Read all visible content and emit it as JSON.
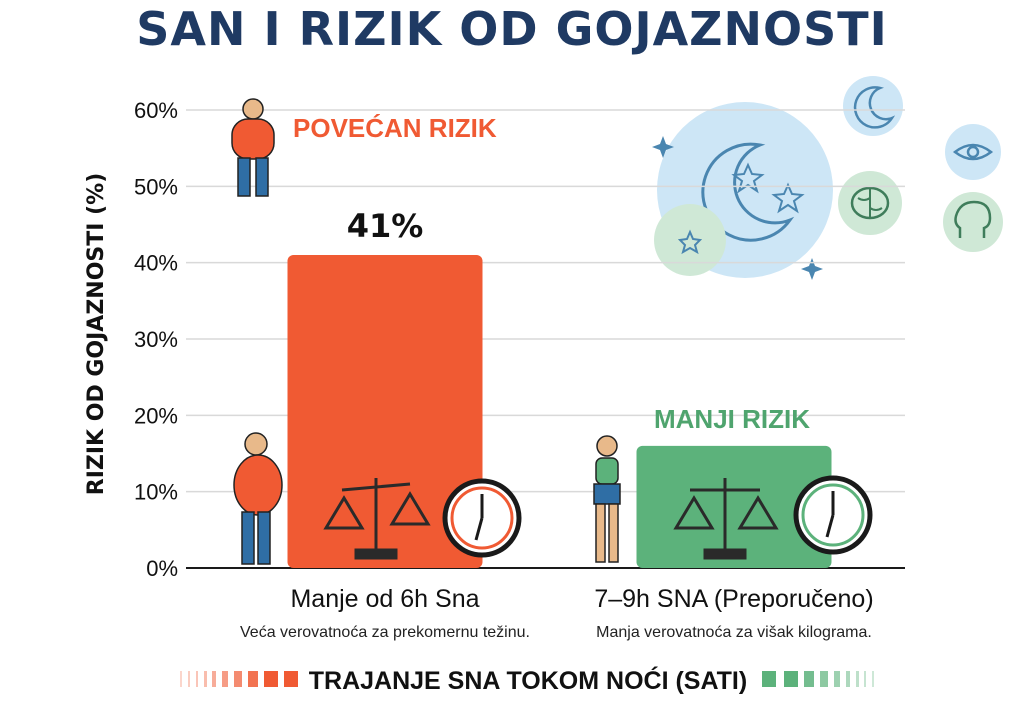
{
  "colors": {
    "title": "#1f3a63",
    "high_risk": "#f05a33",
    "low_risk": "#5cb27b",
    "grid": "#d9d9d9",
    "icon_blue": "#bfe0f3",
    "icon_green": "#cfe8d6"
  },
  "annotations": {
    "high_risk_label": "POVEĆAN RIZIK",
    "low_risk_label": "MANJI RIZIK"
  },
  "icons": [
    "moon-stars-icon",
    "brain-icon",
    "eye-icon",
    "scale-icon",
    "clock-icon",
    "person-icon"
  ],
  "chart_data": {
    "type": "bar",
    "title": "SAN I RIZIK OD GOJAZNOSTI",
    "ylabel": "RIZIK OD GOJAZNOSTI (%)",
    "xlabel": "TRAJANJE SNA TOKOM NOĆI (SATI)",
    "ylim": [
      0,
      60
    ],
    "yticks": [
      0,
      10,
      20,
      30,
      40,
      50,
      60
    ],
    "ytick_labels": [
      "0%",
      "10%",
      "20%",
      "30%",
      "40%",
      "50%",
      "60%"
    ],
    "grid": true,
    "categories": [
      "Manje od 6h Sna",
      "7–9h SNA (Preporučeno)"
    ],
    "subtitles": [
      "Veća verovatnoća za prekomernu težinu.",
      "Manja verovatnoća za višak kilograma."
    ],
    "values": [
      41,
      16
    ],
    "value_labels": [
      "41%",
      ""
    ]
  }
}
